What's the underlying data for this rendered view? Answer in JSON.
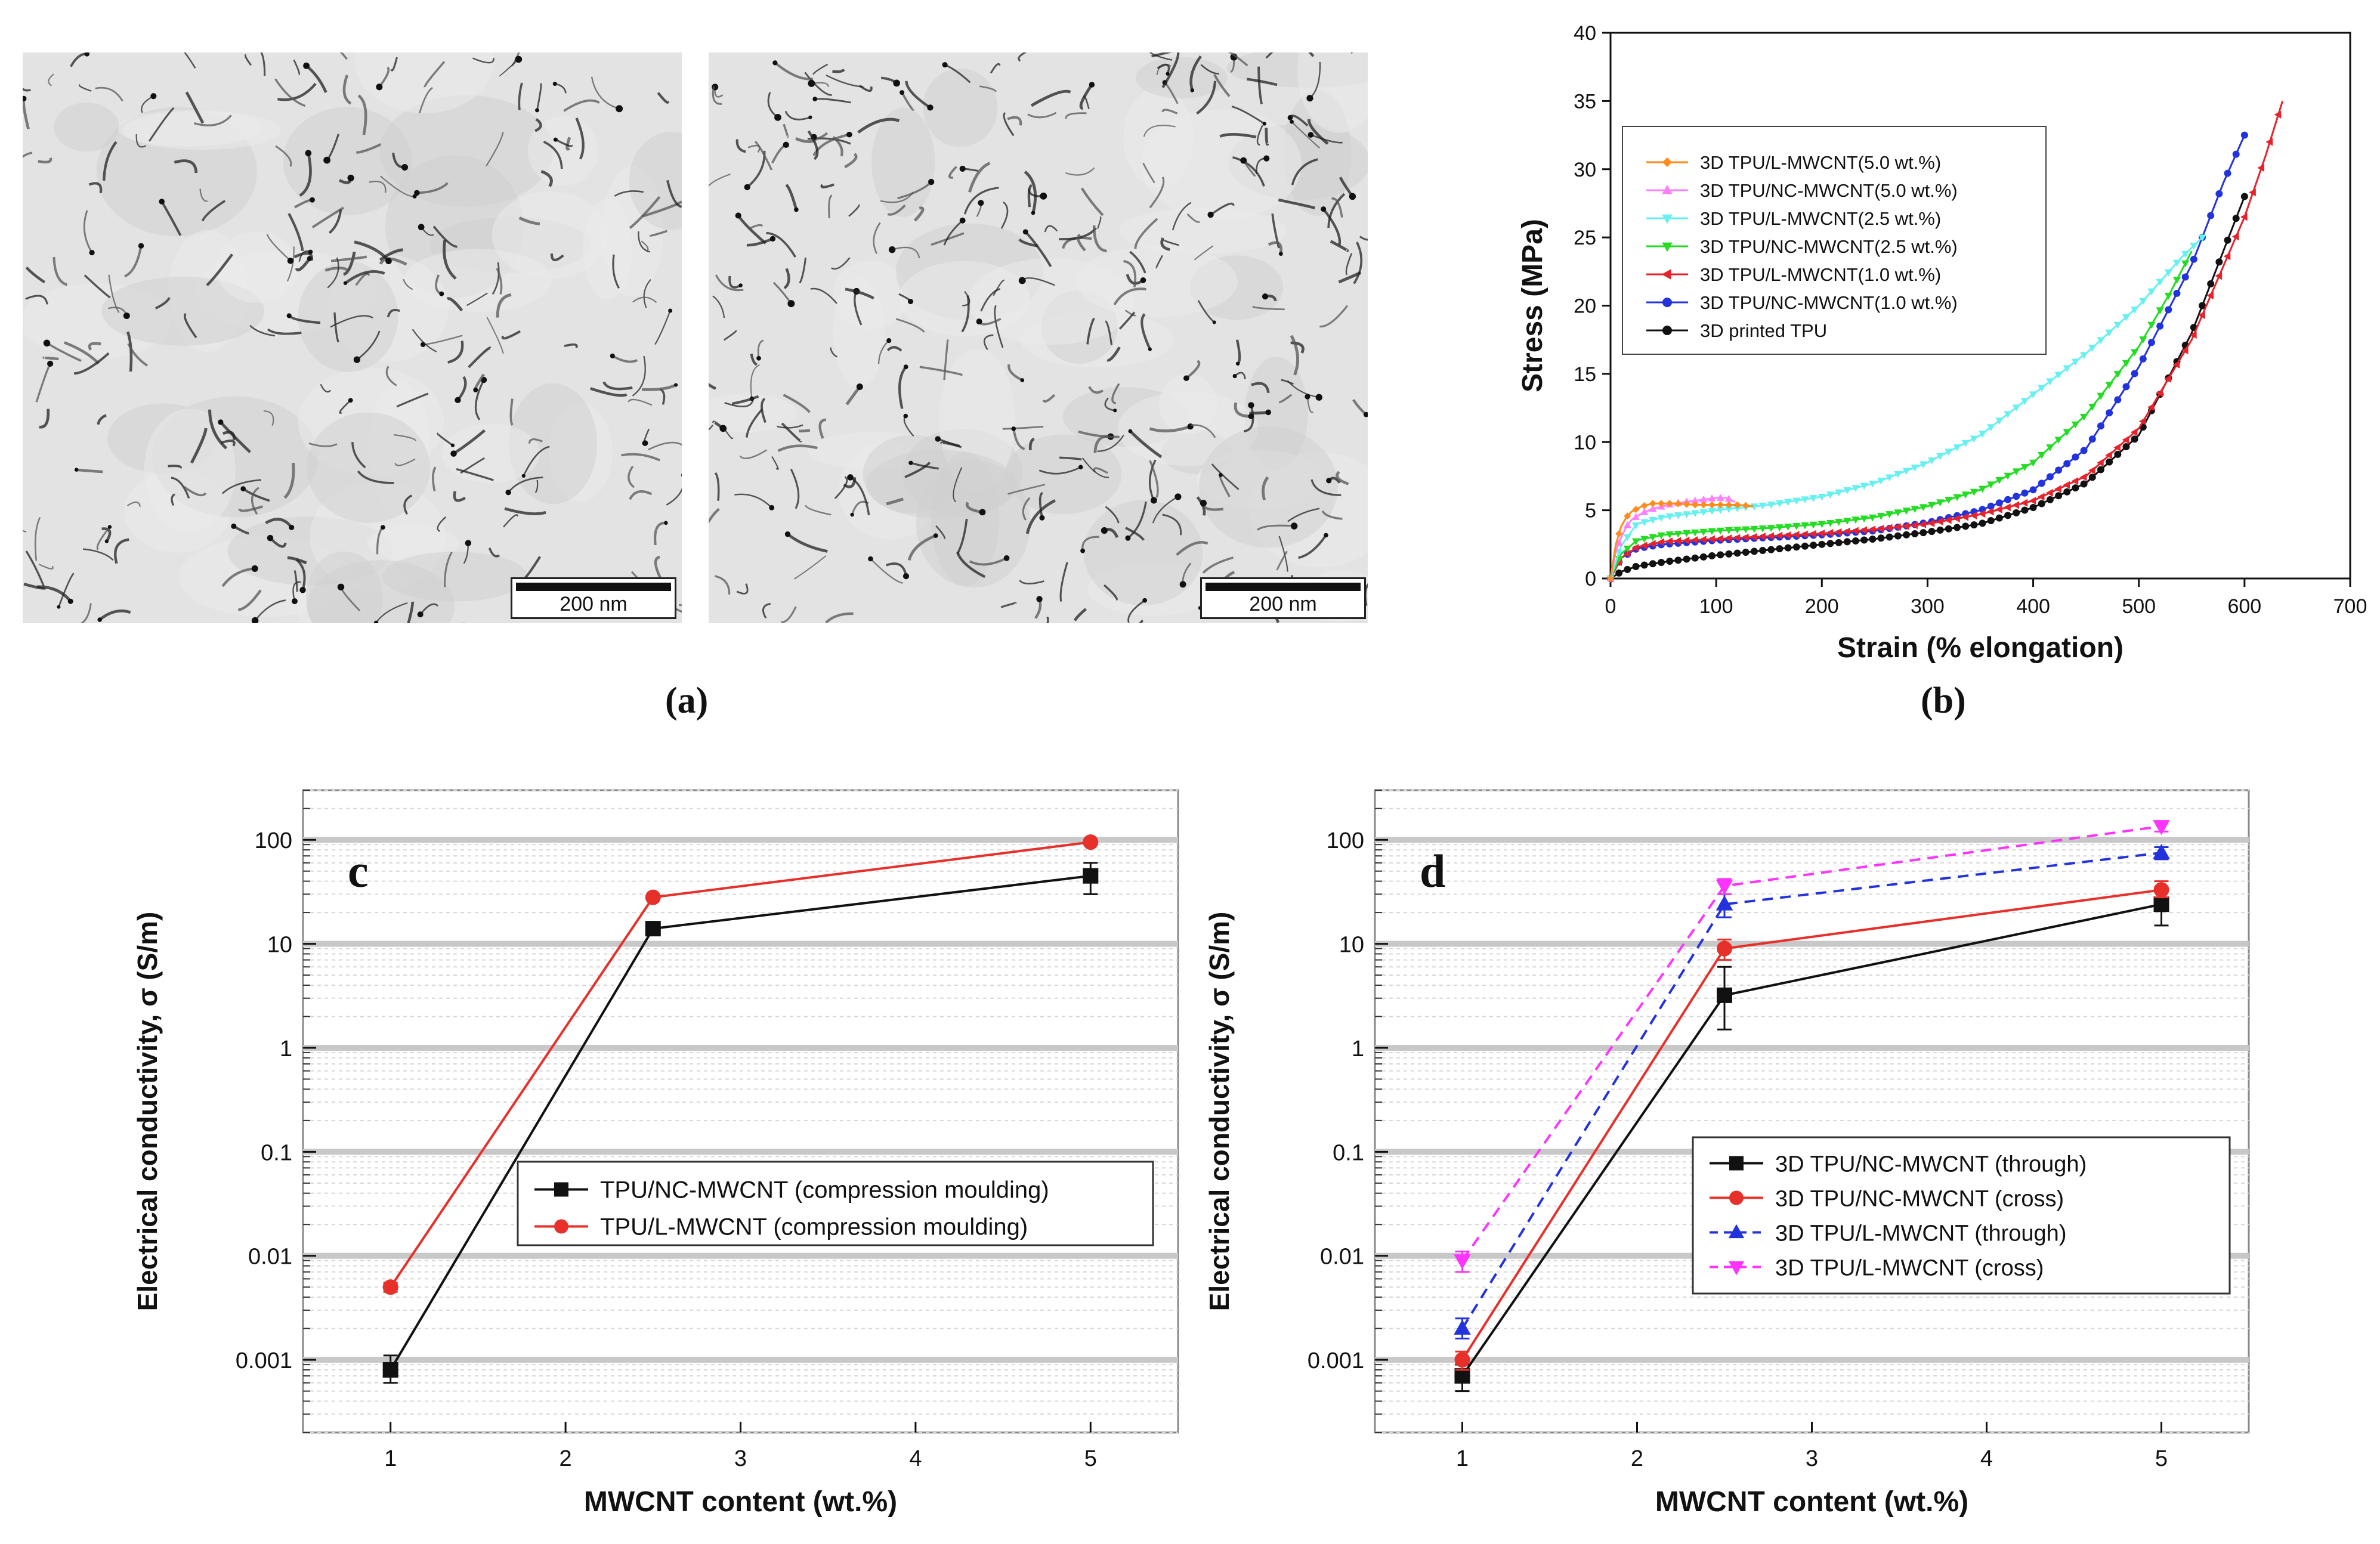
{
  "figure_labels": {
    "a": "(a)",
    "b": "(b)"
  },
  "tem_images": [
    {
      "scale_label": "200 nm"
    },
    {
      "scale_label": "200 nm"
    }
  ],
  "colors": {
    "black": "#111111",
    "red": "#e8302a",
    "blue": "#2233dd",
    "magenta": "#ff33ff",
    "orange": "#ff8c1a",
    "pink": "#ff80ff",
    "cyan": "#66f0f0",
    "green": "#22dd22",
    "darkred": "#e8222a"
  },
  "chart_data": [
    {
      "id": "b",
      "type": "scatter",
      "title": "",
      "xlabel": "Strain (% elongation)",
      "ylabel": "Stress (MPa)",
      "xlim": [
        0,
        700
      ],
      "ylim": [
        0,
        40
      ],
      "xticks": [
        0,
        100,
        200,
        300,
        400,
        500,
        600,
        700
      ],
      "yticks": [
        0,
        5,
        10,
        15,
        20,
        25,
        30,
        35,
        40
      ],
      "legend_position": "top-left",
      "series": [
        {
          "name": "3D TPU/L-MWCNT(5.0 wt.%)",
          "color": "#ff8c1a",
          "marker": "diamond",
          "x": [
            0,
            5,
            10,
            15,
            20,
            30,
            40,
            50,
            60,
            80,
            100,
            120,
            135
          ],
          "y": [
            0,
            2.5,
            3.8,
            4.5,
            4.9,
            5.3,
            5.5,
            5.5,
            5.5,
            5.4,
            5.4,
            5.4,
            5.3
          ]
        },
        {
          "name": "3D TPU/NC-MWCNT(5.0 wt.%)",
          "color": "#ff80ff",
          "marker": "triangle-up",
          "x": [
            0,
            5,
            10,
            15,
            20,
            30,
            40,
            50,
            60,
            70,
            80,
            90,
            100,
            110,
            118
          ],
          "y": [
            0,
            2.0,
            3.0,
            3.8,
            4.3,
            4.8,
            5.1,
            5.3,
            5.5,
            5.6,
            5.7,
            5.8,
            5.9,
            5.9,
            5.6
          ]
        },
        {
          "name": "3D TPU/L-MWCNT(2.5 wt.%)",
          "color": "#66f0f0",
          "marker": "triangle-down",
          "x": [
            0,
            10,
            25,
            50,
            100,
            150,
            200,
            250,
            300,
            350,
            400,
            450,
            500,
            540,
            560
          ],
          "y": [
            0,
            2.4,
            4.0,
            4.5,
            5.0,
            5.4,
            6.0,
            7.0,
            8.5,
            10.5,
            13.5,
            16.5,
            20.0,
            23.5,
            25.0
          ]
        },
        {
          "name": "3D TPU/NC-MWCNT(2.5 wt.%)",
          "color": "#22dd22",
          "marker": "triangle-down",
          "x": [
            0,
            10,
            25,
            50,
            100,
            150,
            200,
            250,
            300,
            350,
            400,
            450,
            500,
            530,
            550
          ],
          "y": [
            0,
            1.8,
            2.8,
            3.2,
            3.5,
            3.7,
            4.0,
            4.5,
            5.3,
            6.5,
            8.5,
            12.0,
            17.0,
            21.0,
            24.0
          ]
        },
        {
          "name": "3D TPU/L-MWCNT(1.0 wt.%)",
          "color": "#e8222a",
          "marker": "triangle-left",
          "x": [
            0,
            10,
            25,
            50,
            100,
            150,
            200,
            250,
            300,
            350,
            400,
            450,
            500,
            550,
            600,
            620,
            636
          ],
          "y": [
            0,
            1.5,
            2.3,
            2.7,
            2.9,
            3.1,
            3.3,
            3.6,
            4.0,
            4.7,
            5.7,
            7.5,
            11.0,
            17.5,
            26.5,
            31.0,
            35.0
          ]
        },
        {
          "name": "3D TPU/NC-MWCNT(1.0 wt.%)",
          "color": "#2233dd",
          "marker": "circle",
          "x": [
            0,
            10,
            25,
            50,
            100,
            150,
            200,
            250,
            300,
            350,
            400,
            450,
            500,
            550,
            580,
            600
          ],
          "y": [
            0,
            1.5,
            2.2,
            2.5,
            2.8,
            3.0,
            3.2,
            3.5,
            4.1,
            5.0,
            6.5,
            9.5,
            15.5,
            23.0,
            29.0,
            32.5
          ]
        },
        {
          "name": "3D printed TPU",
          "color": "#111111",
          "marker": "circle",
          "x": [
            0,
            10,
            25,
            50,
            100,
            150,
            200,
            250,
            300,
            350,
            400,
            450,
            500,
            550,
            580,
            600
          ],
          "y": [
            0,
            0.5,
            0.9,
            1.2,
            1.7,
            2.1,
            2.5,
            2.9,
            3.4,
            4.0,
            5.2,
            7.0,
            10.5,
            18.0,
            24.0,
            28.0
          ]
        }
      ]
    },
    {
      "id": "c",
      "type": "line",
      "panel_letter": "c",
      "xlabel": "MWCNT content (wt.%)",
      "ylabel": "Electrical conductivity, σ (S/m)",
      "yscale": "log",
      "xlim": [
        0.5,
        5.5
      ],
      "ylim": [
        0.0002,
        300
      ],
      "xticks": [
        1,
        2,
        3,
        4,
        5
      ],
      "yticks": [
        0.001,
        0.01,
        0.1,
        1,
        10,
        100
      ],
      "ytick_labels": [
        "0.001",
        "0.01",
        "0.1",
        "1",
        "10",
        "100"
      ],
      "legend_position": "center-right",
      "series": [
        {
          "name": "TPU/NC-MWCNT (compression moulding)",
          "color": "#111111",
          "marker": "square",
          "dash": "solid",
          "x": [
            1,
            2.5,
            5
          ],
          "y": [
            0.0008,
            14,
            45
          ],
          "err_low": [
            0.0006,
            14,
            30
          ],
          "err_high": [
            0.0011,
            14,
            60
          ]
        },
        {
          "name": "TPU/L-MWCNT (compression moulding)",
          "color": "#e8302a",
          "marker": "circle",
          "dash": "solid",
          "x": [
            1,
            2.5,
            5
          ],
          "y": [
            0.005,
            28,
            95
          ],
          "err_low": [
            0.0045,
            28,
            90
          ],
          "err_high": [
            0.0055,
            28,
            100
          ]
        }
      ]
    },
    {
      "id": "d",
      "type": "line",
      "panel_letter": "d",
      "xlabel": "MWCNT content (wt.%)",
      "ylabel": "Electrical conductivity, σ (S/m)",
      "yscale": "log",
      "xlim": [
        0.5,
        5.5
      ],
      "ylim": [
        0.0002,
        300
      ],
      "xticks": [
        1,
        2,
        3,
        4,
        5
      ],
      "yticks": [
        0.001,
        0.01,
        0.1,
        1,
        10,
        100
      ],
      "ytick_labels": [
        "0.001",
        "0.01",
        "0.1",
        "1",
        "10",
        "100"
      ],
      "legend_position": "center-right",
      "series": [
        {
          "name": "3D TPU/NC-MWCNT (through)",
          "color": "#111111",
          "marker": "square",
          "dash": "solid",
          "x": [
            1,
            2.5,
            5
          ],
          "y": [
            0.0007,
            3.2,
            24
          ],
          "err_low": [
            0.0005,
            1.5,
            15
          ],
          "err_high": [
            0.0009,
            6,
            35
          ]
        },
        {
          "name": "3D TPU/NC-MWCNT (cross)",
          "color": "#e8302a",
          "marker": "circle",
          "dash": "solid",
          "x": [
            1,
            2.5,
            5
          ],
          "y": [
            0.001,
            9,
            33
          ],
          "err_low": [
            0.0008,
            7,
            28
          ],
          "err_high": [
            0.0012,
            11,
            40
          ]
        },
        {
          "name": "3D TPU/L-MWCNT (through)",
          "color": "#2233dd",
          "marker": "triangle-up",
          "dash": "dashed",
          "x": [
            1,
            2.5,
            5
          ],
          "y": [
            0.002,
            24,
            75
          ],
          "err_low": [
            0.0016,
            18,
            65
          ],
          "err_high": [
            0.0025,
            30,
            85
          ]
        },
        {
          "name": "3D TPU/L-MWCNT (cross)",
          "color": "#ff33ff",
          "marker": "triangle-down",
          "dash": "dashed",
          "x": [
            1,
            2.5,
            5
          ],
          "y": [
            0.009,
            36,
            135
          ],
          "err_low": [
            0.007,
            30,
            120
          ],
          "err_high": [
            0.011,
            42,
            150
          ]
        }
      ]
    }
  ]
}
